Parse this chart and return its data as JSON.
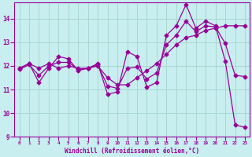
{
  "xlabel": "Windchill (Refroidissement éolien,°C)",
  "background_color": "#c8eef0",
  "grid_color": "#a8d8d0",
  "line_color": "#990099",
  "ylim": [
    9,
    14.7
  ],
  "xlim": [
    -0.5,
    23.5
  ],
  "series1_x": [
    0,
    1,
    2,
    3,
    4,
    5,
    6,
    7,
    8,
    9,
    10,
    11,
    12,
    13,
    14,
    15,
    16,
    17,
    18,
    19,
    20,
    21,
    22,
    23
  ],
  "series1_y": [
    11.9,
    12.1,
    11.3,
    11.9,
    12.4,
    12.3,
    11.8,
    11.9,
    12.1,
    10.8,
    10.9,
    12.6,
    12.4,
    11.1,
    11.3,
    13.3,
    13.7,
    14.6,
    13.6,
    13.9,
    13.7,
    12.2,
    9.5,
    9.4
  ],
  "series2_x": [
    0,
    1,
    2,
    3,
    4,
    5,
    6,
    7,
    8,
    9,
    10,
    11,
    12,
    13,
    14,
    15,
    16,
    17,
    18,
    19,
    20,
    21,
    22,
    23
  ],
  "series2_y": [
    11.9,
    12.1,
    11.9,
    12.1,
    11.9,
    12.0,
    11.9,
    11.9,
    12.0,
    11.5,
    11.2,
    11.2,
    11.5,
    11.8,
    12.1,
    12.5,
    12.9,
    13.2,
    13.3,
    13.5,
    13.6,
    13.7,
    13.7,
    13.7
  ],
  "series3_x": [
    0,
    1,
    2,
    3,
    4,
    5,
    6,
    7,
    8,
    9,
    10,
    11,
    12,
    13,
    14,
    15,
    16,
    17,
    18,
    19,
    20,
    21,
    22,
    23
  ],
  "series3_y": [
    11.85,
    12.05,
    11.6,
    12.0,
    12.15,
    12.15,
    11.85,
    11.9,
    12.05,
    11.15,
    11.05,
    11.9,
    11.95,
    11.45,
    11.7,
    12.9,
    13.3,
    13.9,
    13.45,
    13.7,
    13.65,
    12.95,
    11.6,
    11.55
  ]
}
